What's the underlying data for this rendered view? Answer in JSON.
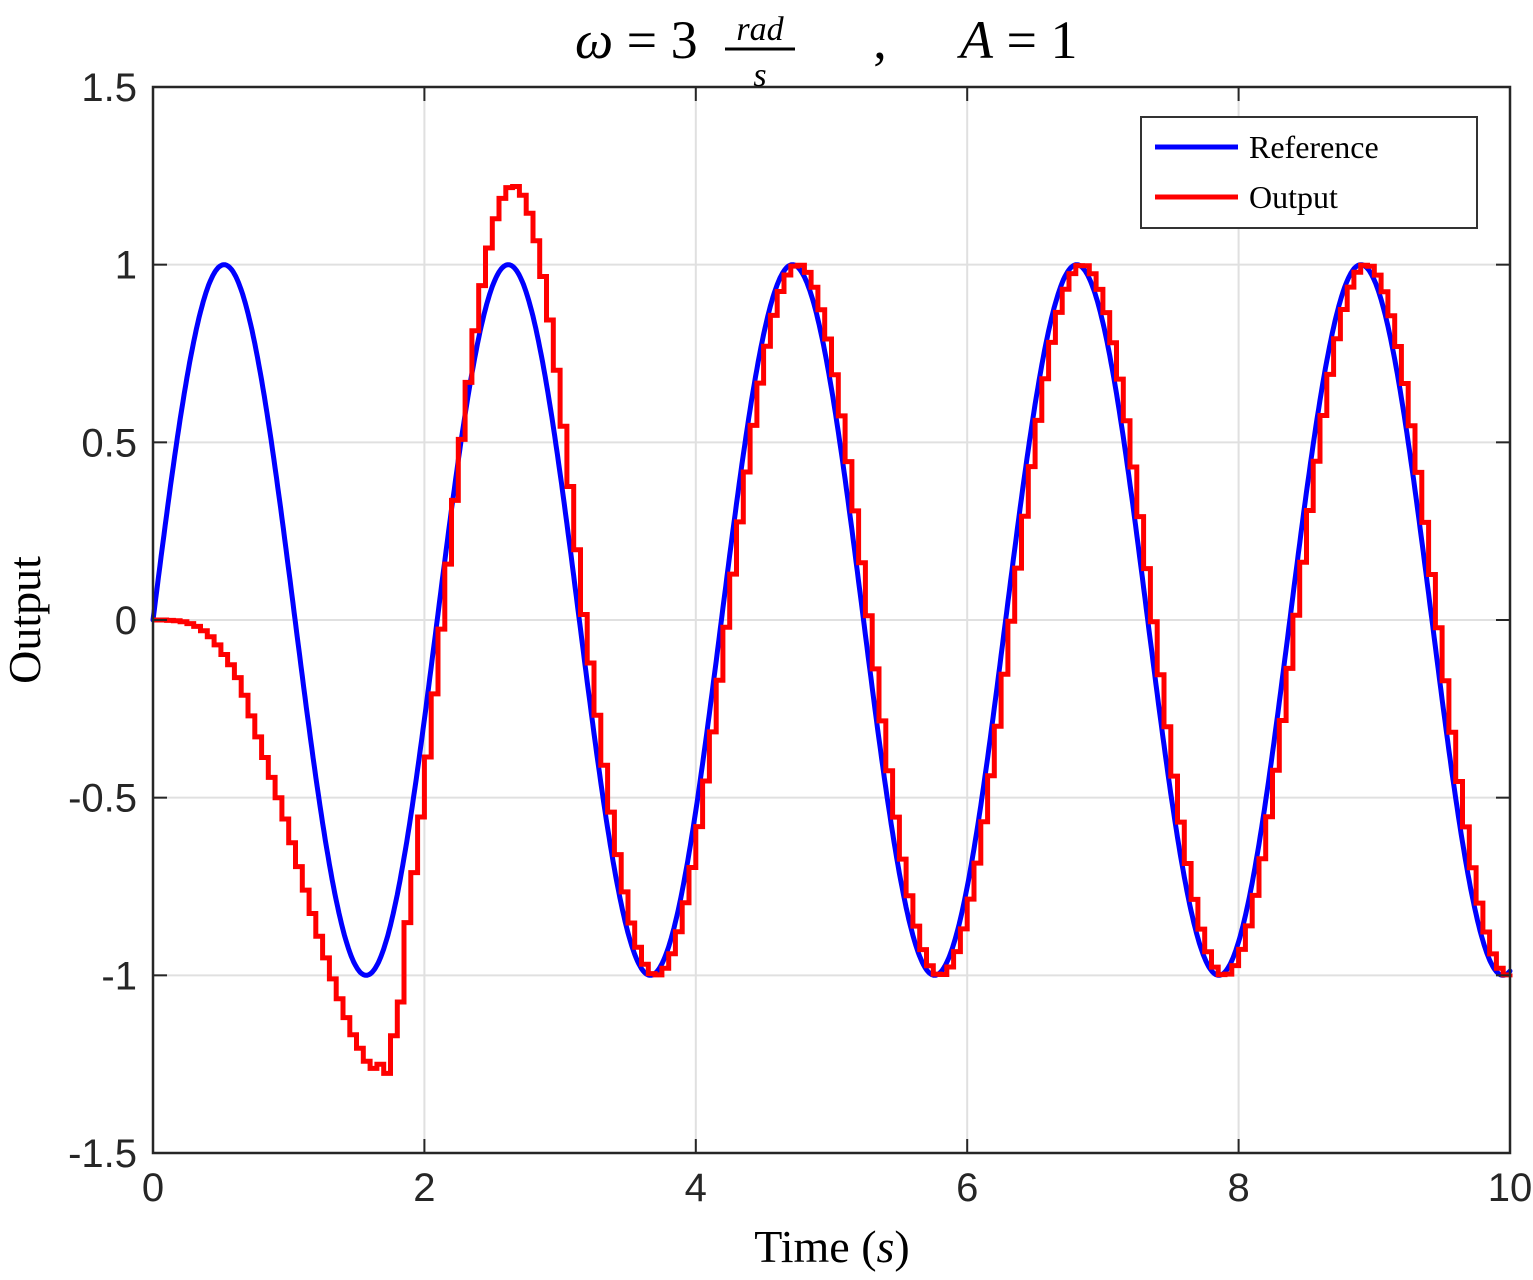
{
  "figure": {
    "background": "#FFFFFF"
  },
  "title": {
    "plain": "ω = 3 rad/s , A = 1",
    "omega": "ω",
    "eq": " = 3",
    "frac_num": "rad",
    "frac_den": "s",
    "comma": ",",
    "var_a": "A",
    "a_eq": " = 1"
  },
  "axes": {
    "xlabel_plain": "Time (s)",
    "xlabel_pre": "Time (",
    "xlabel_var": "s",
    "xlabel_post": ")",
    "ylabel": "Output"
  },
  "legend": {
    "position": "northeast",
    "items": [
      {
        "label": "Reference",
        "color": "#0000FF"
      },
      {
        "label": "Output",
        "color": "#FF0000"
      }
    ]
  },
  "chart_data": {
    "type": "line",
    "title": "ω = 3 rad/s , A = 1",
    "xlabel": "Time (s)",
    "ylabel": "Output",
    "xlim": [
      0,
      10
    ],
    "ylim": [
      -1.5,
      1.5
    ],
    "xticks": [
      0,
      2,
      4,
      6,
      8,
      10
    ],
    "xtick_labels": [
      "0",
      "2",
      "4",
      "6",
      "8",
      "10"
    ],
    "yticks": [
      -1.5,
      -1,
      -0.5,
      0,
      0.5,
      1,
      1.5
    ],
    "ytick_labels": [
      "-1.5",
      "-1",
      "-0.5",
      "0",
      "0.5",
      "1",
      "1.5"
    ],
    "grid": true,
    "legend_position": "northeast",
    "series": [
      {
        "name": "Reference",
        "color": "#0000FF",
        "style": "smooth-line",
        "line_width": 5,
        "model": {
          "kind": "sine",
          "amplitude": 1,
          "omega_rad_per_s": 3,
          "t_shift": 0,
          "t_from": 0,
          "t_to": 10
        },
        "t_step": 0.01
      },
      {
        "name": "Output",
        "color": "#FF0000",
        "style": "zoh-staircase",
        "line_width": 5,
        "sample_time_s": 0.05,
        "transient_samples": {
          "t_start": 0,
          "t_step": 0.05,
          "t_end": 1.8,
          "values": [
            0,
            0,
            -0.001,
            -0.002,
            -0.005,
            -0.01,
            -0.018,
            -0.03,
            -0.047,
            -0.07,
            -0.097,
            -0.126,
            -0.162,
            -0.212,
            -0.27,
            -0.329,
            -0.387,
            -0.443,
            -0.5,
            -0.56,
            -0.627,
            -0.694,
            -0.76,
            -0.826,
            -0.89,
            -0.951,
            -1.01,
            -1.066,
            -1.119,
            -1.167,
            -1.205,
            -1.242,
            -1.262,
            -1.25,
            -1.276,
            -1.17,
            -1.075
          ]
        },
        "post_transient_models": [
          {
            "kind": "sine",
            "amplitude": 1.222,
            "omega_rad_per_s": 3,
            "t_shift": 2.107,
            "t_from": 1.8,
            "t_to": 3.17
          },
          {
            "kind": "sine",
            "amplitude": 1.0,
            "omega_rad_per_s": 3,
            "t_shift": 0.018,
            "t_from": 3.17,
            "t_to": 10
          }
        ],
        "extrema_read_from_plot": {
          "first_trough": {
            "t": 1.7,
            "y": -1.28
          },
          "first_peak": {
            "t": 2.63,
            "y": 1.22
          },
          "second_trough": {
            "t": 3.7,
            "y": -0.99
          }
        }
      }
    ]
  }
}
